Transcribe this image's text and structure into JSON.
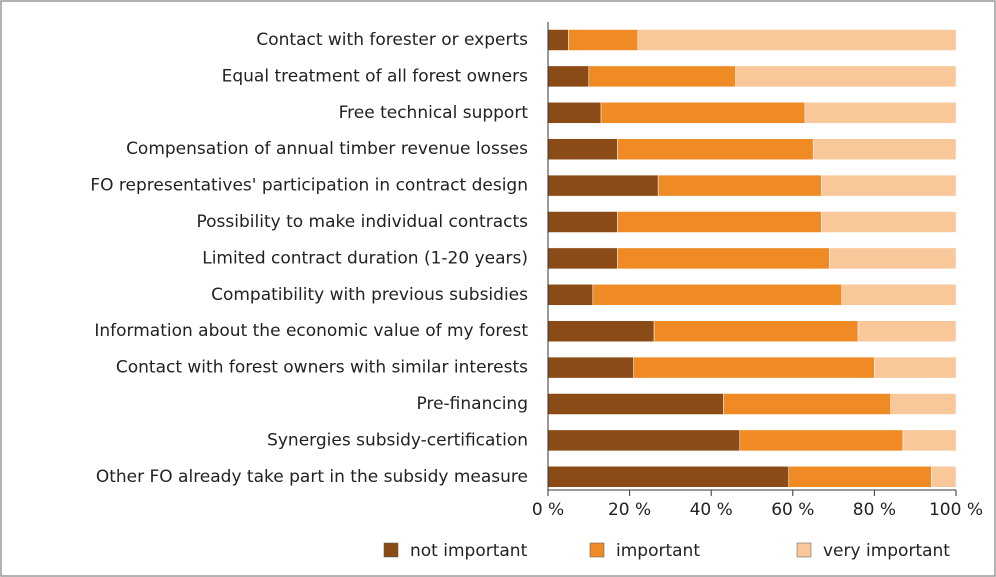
{
  "chart_data": {
    "type": "stacked_barh",
    "categories": [
      "Contact with forester or experts",
      "Equal treatment of all forest owners",
      "Free technical support",
      "Compensation of annual timber revenue losses",
      "FO representatives' participation in contract design",
      "Possibility to make individual contracts",
      "Limited contract duration (1-20 years)",
      "Compatibility with previous subsidies",
      "Information about the economic value of my forest",
      "Contact with forest owners with similar interests",
      "Pre-financing",
      "Synergies subsidy-certification",
      "Other FO already take part in the subsidy measure"
    ],
    "series": [
      {
        "name": "not important",
        "color": "#8b4b16",
        "values": [
          5,
          10,
          13,
          17,
          27,
          17,
          17,
          11,
          26,
          21,
          43,
          47,
          59
        ]
      },
      {
        "name": "important",
        "color": "#ef8a25",
        "values": [
          17,
          36,
          50,
          48,
          40,
          50,
          52,
          61,
          50,
          59,
          41,
          40,
          35
        ]
      },
      {
        "name": "very important",
        "color": "#f9c89a",
        "values": [
          78,
          54,
          37,
          35,
          33,
          33,
          31,
          28,
          24,
          20,
          16,
          13,
          6
        ]
      }
    ],
    "xlim": [
      0,
      100
    ],
    "xticks": [
      {
        "value": 0,
        "label": "0 %"
      },
      {
        "value": 20,
        "label": "20 %"
      },
      {
        "value": 40,
        "label": "40 %"
      },
      {
        "value": 60,
        "label": "60 %"
      },
      {
        "value": 80,
        "label": "80 %"
      },
      {
        "value": 100,
        "label": "100 %"
      }
    ],
    "legend": "bottom"
  }
}
